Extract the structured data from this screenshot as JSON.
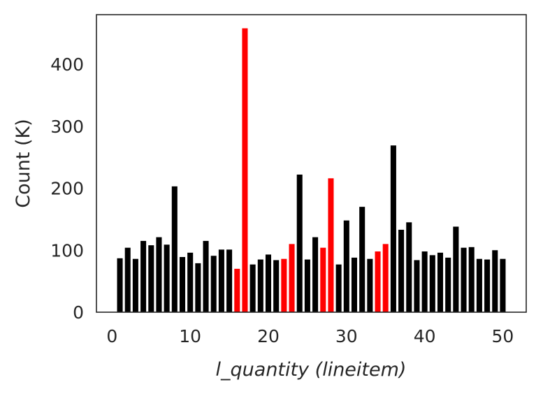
{
  "chart_data": {
    "type": "bar",
    "xlabel": "l_quantity (lineitem)",
    "ylabel": "Count (K)",
    "xlim": [
      -2,
      53
    ],
    "ylim": [
      0,
      480
    ],
    "xticks": [
      0,
      10,
      20,
      30,
      40,
      50
    ],
    "yticks": [
      0,
      100,
      200,
      300,
      400
    ],
    "grid": false,
    "colors": {
      "default": "#000000",
      "highlight": "#ff0000"
    },
    "highlighted_x": [
      16,
      17,
      22,
      23,
      27,
      28,
      34,
      35
    ],
    "x": [
      1,
      2,
      3,
      4,
      5,
      6,
      7,
      8,
      9,
      10,
      11,
      12,
      13,
      14,
      15,
      16,
      17,
      18,
      19,
      20,
      21,
      22,
      23,
      24,
      25,
      26,
      27,
      28,
      29,
      30,
      31,
      32,
      33,
      34,
      35,
      36,
      37,
      38,
      39,
      40,
      41,
      42,
      43,
      44,
      45,
      46,
      47,
      48,
      49,
      50
    ],
    "values": [
      87,
      104,
      86,
      115,
      108,
      121,
      109,
      203,
      89,
      96,
      79,
      115,
      91,
      101,
      101,
      70,
      458,
      77,
      85,
      93,
      84,
      86,
      110,
      222,
      85,
      121,
      104,
      216,
      77,
      148,
      88,
      170,
      86,
      98,
      110,
      269,
      133,
      145,
      84,
      98,
      92,
      96,
      88,
      138,
      104,
      105,
      86,
      85,
      100,
      86
    ]
  }
}
